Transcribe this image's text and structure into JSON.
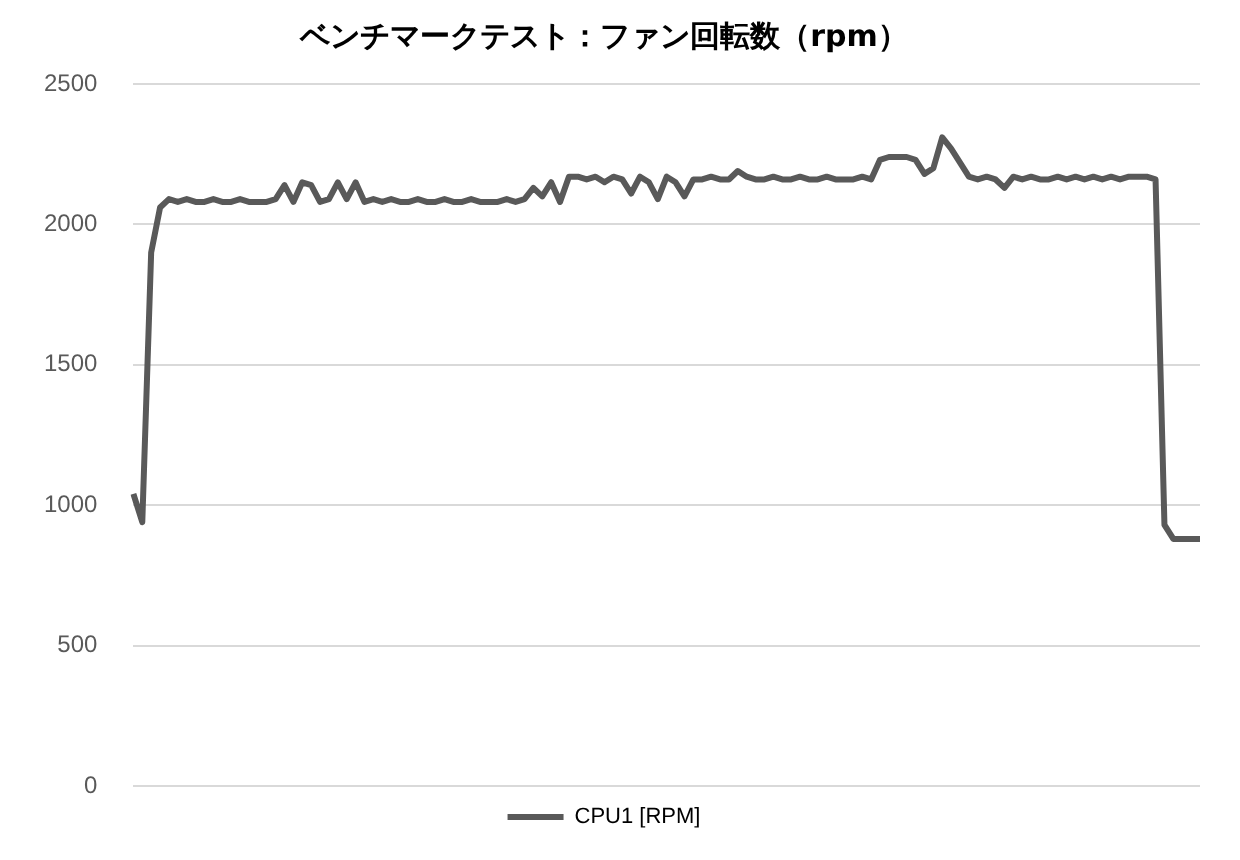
{
  "chart_data": {
    "type": "line",
    "title": "ベンチマークテスト：ファン回転数（rpm）",
    "categories": [
      null,
      null,
      null,
      null,
      null,
      null,
      null,
      null,
      null,
      null,
      null,
      null,
      null,
      null,
      null,
      null,
      null,
      null,
      null,
      null,
      null,
      null,
      null,
      null,
      null,
      null,
      null,
      null,
      null,
      null,
      null,
      null,
      null,
      null,
      null,
      null,
      null,
      null,
      null,
      null,
      null,
      null,
      null,
      null,
      null,
      null,
      null,
      null,
      null,
      null,
      null,
      null,
      null,
      null,
      null,
      null,
      null,
      null,
      null,
      null,
      null,
      null,
      null,
      null,
      null,
      null,
      null,
      null,
      null,
      null,
      null,
      null,
      null,
      null,
      null,
      null,
      null,
      null,
      null,
      null,
      null,
      null,
      null,
      null,
      null,
      null,
      null,
      null,
      null,
      null,
      null,
      null,
      null,
      null,
      null,
      null,
      null,
      null,
      null,
      null,
      null,
      null,
      null,
      null,
      null,
      null,
      null,
      null,
      null,
      null,
      null,
      null,
      null,
      null,
      null,
      null,
      null,
      null,
      null,
      null,
      null
    ],
    "series": [
      {
        "name": "CPU1 [RPM]",
        "color": "#595959",
        "values": [
          1040,
          940,
          1900,
          2060,
          2090,
          2080,
          2090,
          2080,
          2080,
          2090,
          2080,
          2080,
          2090,
          2080,
          2080,
          2080,
          2090,
          2140,
          2080,
          2150,
          2140,
          2080,
          2090,
          2150,
          2090,
          2150,
          2080,
          2090,
          2080,
          2090,
          2080,
          2080,
          2090,
          2080,
          2080,
          2090,
          2080,
          2080,
          2090,
          2080,
          2080,
          2080,
          2090,
          2080,
          2090,
          2130,
          2100,
          2150,
          2080,
          2170,
          2170,
          2160,
          2170,
          2150,
          2170,
          2160,
          2110,
          2170,
          2150,
          2090,
          2170,
          2150,
          2100,
          2160,
          2160,
          2170,
          2160,
          2160,
          2190,
          2170,
          2160,
          2160,
          2170,
          2160,
          2160,
          2170,
          2160,
          2160,
          2170,
          2160,
          2160,
          2160,
          2170,
          2160,
          2230,
          2240,
          2240,
          2240,
          2230,
          2180,
          2200,
          2310,
          2270,
          2220,
          2170,
          2160,
          2170,
          2160,
          2130,
          2170,
          2160,
          2170,
          2160,
          2160,
          2170,
          2160,
          2170,
          2160,
          2170,
          2160,
          2170,
          2160,
          2170,
          2170,
          2170,
          2160,
          930,
          880,
          880,
          880,
          880
        ]
      }
    ],
    "ylim": [
      0,
      2500
    ],
    "yticks": [
      0,
      500,
      1000,
      1500,
      2000,
      2500
    ],
    "grid": "y",
    "legend": "bottom",
    "marker": "none",
    "line_style": "solid"
  }
}
